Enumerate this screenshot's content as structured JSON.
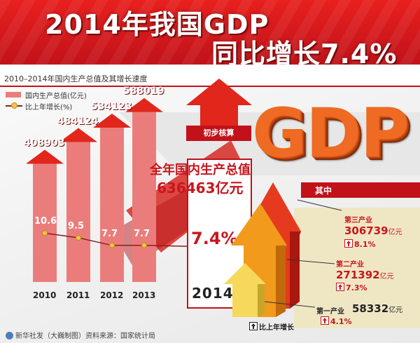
{
  "title": {
    "line1": "2014年我国GDP",
    "line2": "同比增长7.4%"
  },
  "subtitle": "2010–2014年国内生产总值及其增长速度",
  "colors": {
    "bar": "#ea7d7b",
    "bar_arrow": "#e1261c",
    "line": "#8a2020",
    "marker": "#f2c34b",
    "accent": "#c8161d",
    "title_band": "#d71a1f",
    "gdp_orange": "#ef6a22"
  },
  "chart_data": {
    "type": "bar",
    "categories": [
      "2010",
      "2011",
      "2012",
      "2013"
    ],
    "series": [
      {
        "name": "国内生产总值(亿元)",
        "values": [
          408903,
          484124,
          534123,
          588019
        ]
      },
      {
        "name": "比上年增长(%)",
        "values": [
          10.6,
          9.5,
          7.7,
          7.7
        ]
      }
    ],
    "legend_position": "top-left",
    "grid": false
  },
  "labels": {
    "gdp": [
      "408903",
      "484124",
      "534123",
      "588019"
    ],
    "rate": [
      "10.6",
      "9.5",
      "7.7",
      "7.7"
    ]
  },
  "highlight": {
    "prelim_label": "初步核算",
    "total_line1": "全年国内生产总值",
    "total_line2": "636463亿元",
    "rate": "7.4%",
    "year": "2014",
    "gdp_word": "GDP",
    "growth_rate_value": 7.4
  },
  "breakdown": {
    "header": "其中",
    "tertiary": {
      "name": "第三产业",
      "value": "306739",
      "unit": "亿元",
      "rate": "8.1%"
    },
    "secondary": {
      "name": "第二产业",
      "value": "271392",
      "unit": "亿元",
      "rate": "7.3%"
    },
    "primary": {
      "name": "第一产业",
      "value": "58332",
      "unit": "亿元",
      "rate": "4.1%"
    },
    "legend": "比上年增长"
  },
  "footer": "新华社发（大巍制图）资料来源：国家统计局"
}
